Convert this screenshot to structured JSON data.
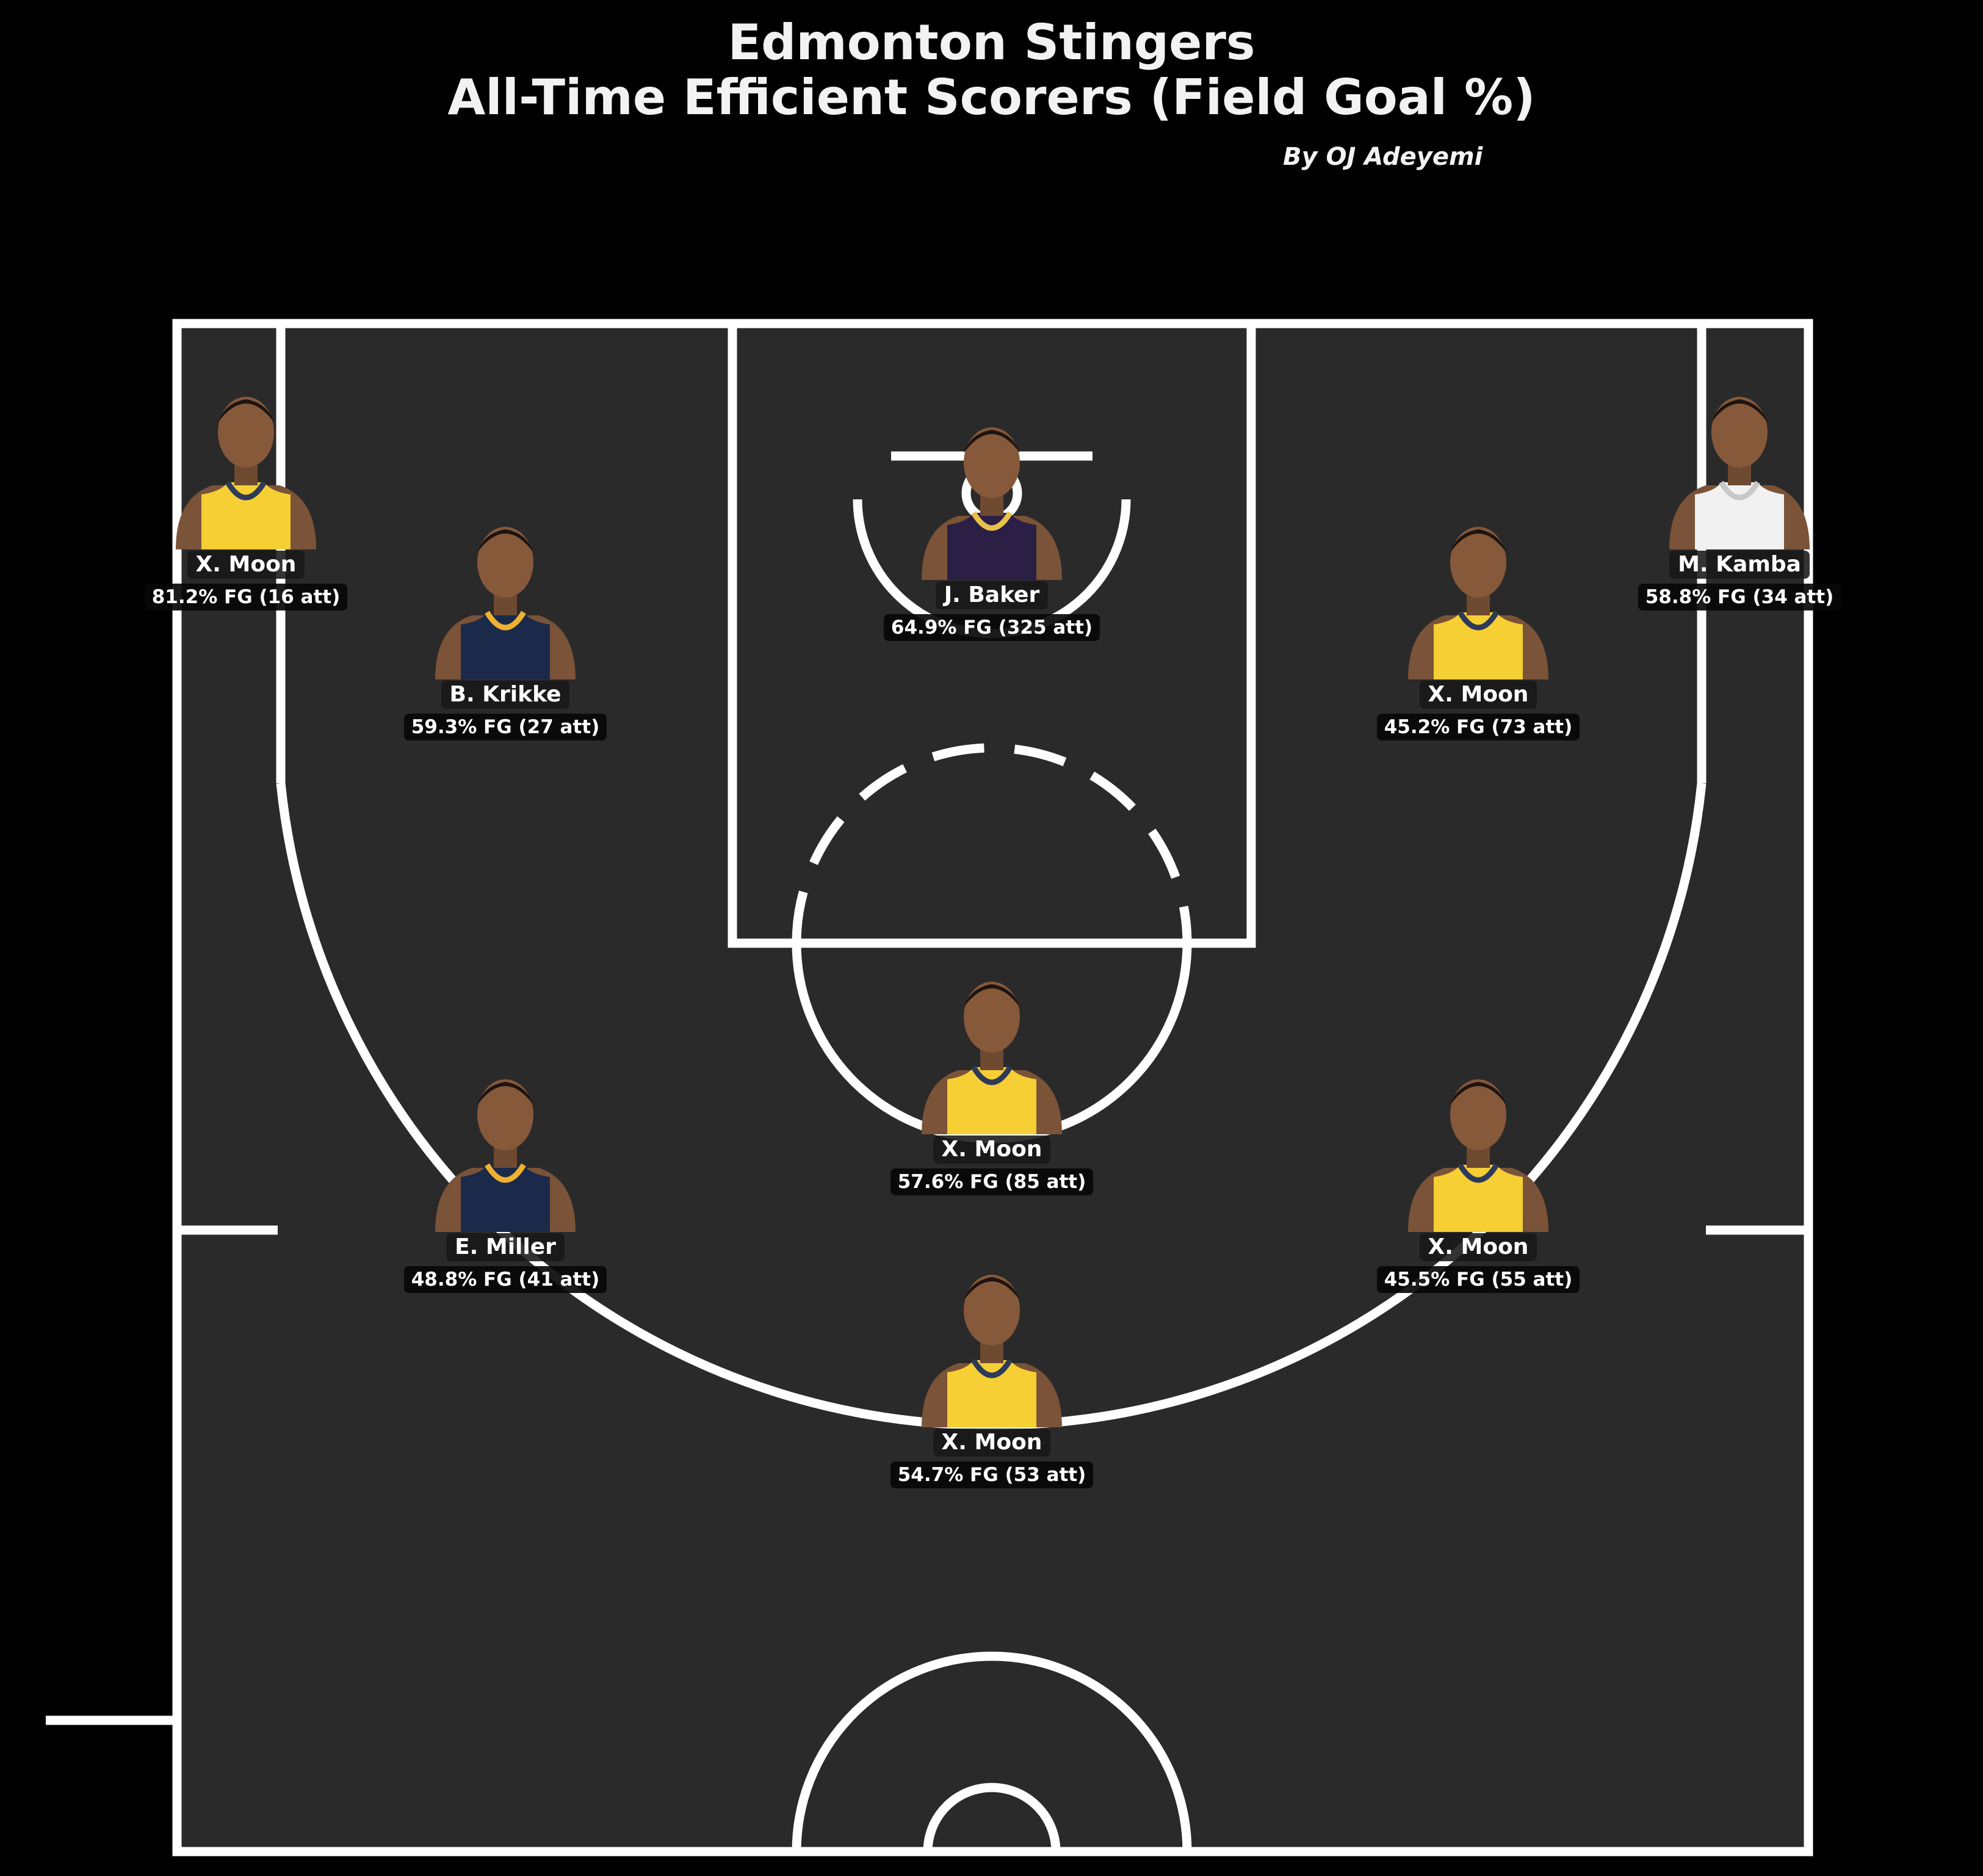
{
  "title_line1": "Edmonton Stingers",
  "title_line2": "All-Time Efficient Scorers (Field Goal %)",
  "byline": "By OJ Adeyemi",
  "colors": {
    "background": "#000000",
    "court": "#2a2a2a",
    "lines": "#ffffff",
    "jersey_home": "#f5cf34",
    "jersey_navy": "#1b2a4a",
    "jersey_white": "#f1f1f1",
    "jersey_purple": "#2b1f45"
  },
  "chart_data": {
    "type": "scatter",
    "title": "Edmonton Stingers All-Time Efficient Scorers (Field Goal %)",
    "points": [
      {
        "name": "X. Moon",
        "fg_pct": 81.2,
        "attempts": 16,
        "label": "81.2% FG (16 att)",
        "jersey": "home"
      },
      {
        "name": "B. Krikke",
        "fg_pct": 59.3,
        "attempts": 27,
        "label": "59.3% FG (27 att)",
        "jersey": "navy"
      },
      {
        "name": "J. Baker",
        "fg_pct": 64.9,
        "attempts": 325,
        "label": "64.9% FG (325 att)",
        "jersey": "purple"
      },
      {
        "name": "X. Moon",
        "fg_pct": 45.2,
        "attempts": 73,
        "label": "45.2% FG (73 att)",
        "jersey": "home"
      },
      {
        "name": "M. Kamba",
        "fg_pct": 58.8,
        "attempts": 34,
        "label": "58.8% FG (34 att)",
        "jersey": "white"
      },
      {
        "name": "X. Moon",
        "fg_pct": 57.6,
        "attempts": 85,
        "label": "57.6% FG (85 att)",
        "jersey": "home"
      },
      {
        "name": "E. Miller",
        "fg_pct": 48.8,
        "attempts": 41,
        "label": "48.8% FG (41 att)",
        "jersey": "navy"
      },
      {
        "name": "X. Moon",
        "fg_pct": 45.5,
        "attempts": 55,
        "label": "45.5% FG (55 att)",
        "jersey": "home"
      },
      {
        "name": "X. Moon",
        "fg_pct": 54.7,
        "attempts": 53,
        "label": "54.7% FG (53 att)",
        "jersey": "home"
      }
    ]
  }
}
